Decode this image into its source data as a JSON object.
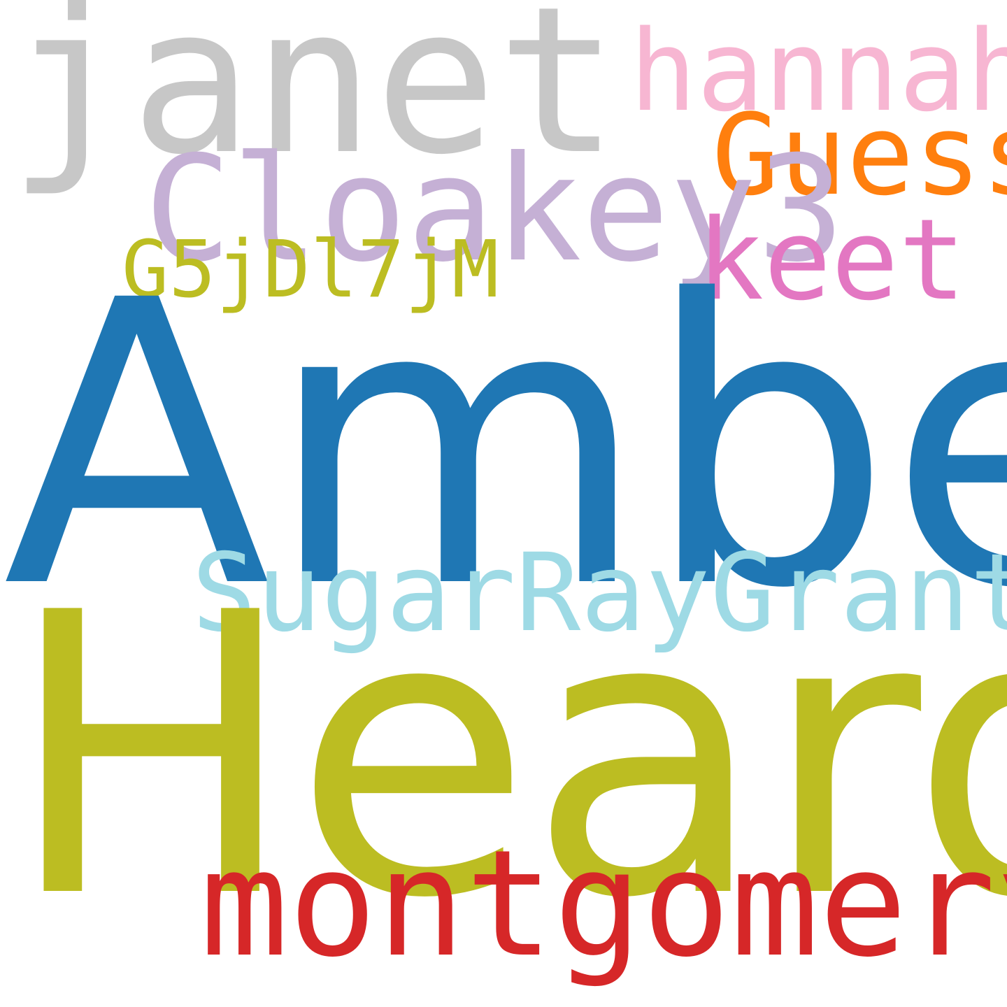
{
  "words": [
    {
      "id": "janet",
      "text": "janet",
      "color": "#c7c7c7"
    },
    {
      "id": "hannah",
      "text": "hannah",
      "color": "#f7b6d2"
    },
    {
      "id": "guess",
      "text": "Guess",
      "color": "#ff7f0e"
    },
    {
      "id": "cloakey3",
      "text": "Cloakey3",
      "color": "#c5b0d5"
    },
    {
      "id": "keet",
      "text": "keet",
      "color": "#e377c2"
    },
    {
      "id": "g5j",
      "text": "G5jDl7jM",
      "color": "#bcbd22"
    },
    {
      "id": "amber",
      "text": "Amber",
      "color": "#1f77b4"
    },
    {
      "id": "sugar",
      "text": "SugarRayGrant",
      "color": "#9edae5"
    },
    {
      "id": "heard",
      "text": "Heard",
      "color": "#bcbd22"
    },
    {
      "id": "montgomery",
      "text": "montgomery",
      "color": "#d62728"
    }
  ]
}
